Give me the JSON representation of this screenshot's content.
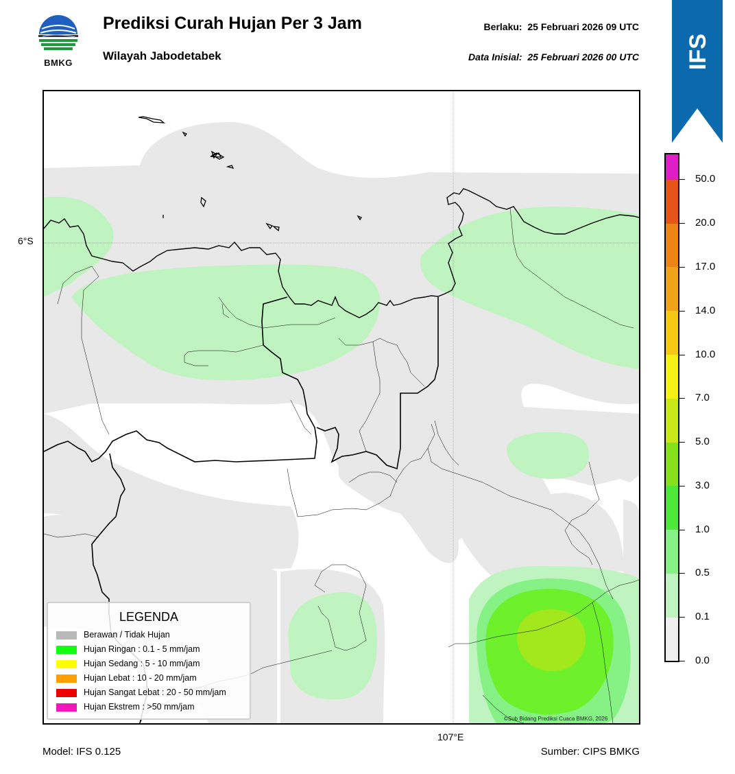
{
  "header": {
    "logo_text": "BMKG",
    "title": "Prediksi Curah Hujan Per 3 Jam",
    "subtitle": "Wilayah Jabodetabek",
    "valid_label": "Berlaku:",
    "valid_value": "25 Februari 2026 09 UTC",
    "init_label": "Data Inisial:",
    "init_value": "25 Februari 2026 00 UTC"
  },
  "ribbon": {
    "text": "IFS",
    "color": "#0a6aad"
  },
  "map": {
    "lat_label": "6°S",
    "lon_label": "107°E",
    "copyright": "©Sub Bidang Prediksi Cuaca BMKG, 2026",
    "colors": {
      "cloudy": "#e8e8e8",
      "light_01": "#bff3bf",
      "light_05": "#86f286",
      "light_10": "#6ef02a",
      "light_30": "#a3e81c"
    }
  },
  "legend": {
    "title": "LEGENDA",
    "items": [
      {
        "label": "Berawan / Tidak Hujan",
        "color": "#b9b9b9"
      },
      {
        "label": "Hujan Ringan : 0.1 - 5 mm/jam",
        "color": "#11ff11"
      },
      {
        "label": "Hujan Sedang : 5 - 10 mm/jam",
        "color": "#ffff00"
      },
      {
        "label": "Hujan Lebat : 10 - 20 mm/jam",
        "color": "#ff9f00"
      },
      {
        "label": "Hujan Sangat Lebat : 20 - 50 mm/jam",
        "color": "#ee0000"
      },
      {
        "label": "Hujan Ekstrem : >50 mm/jam",
        "color": "#ee18bc"
      }
    ]
  },
  "colorbar": {
    "labels": [
      "0.0",
      "0.1",
      "0.5",
      "1.0",
      "3.0",
      "5.0",
      "7.0",
      "10.0",
      "14.0",
      "17.0",
      "20.0",
      "50.0"
    ],
    "colors": [
      "#efefef",
      "#bff3bf",
      "#86f286",
      "#4de83a",
      "#86e01c",
      "#c8e81a",
      "#f5f016",
      "#f5c814",
      "#f0a218",
      "#ec8418",
      "#e6541a",
      "#e01e1e",
      "#e01ec8"
    ]
  },
  "footer": {
    "model": "Model: IFS 0.125",
    "source": "Sumber: CIPS BMKG"
  }
}
